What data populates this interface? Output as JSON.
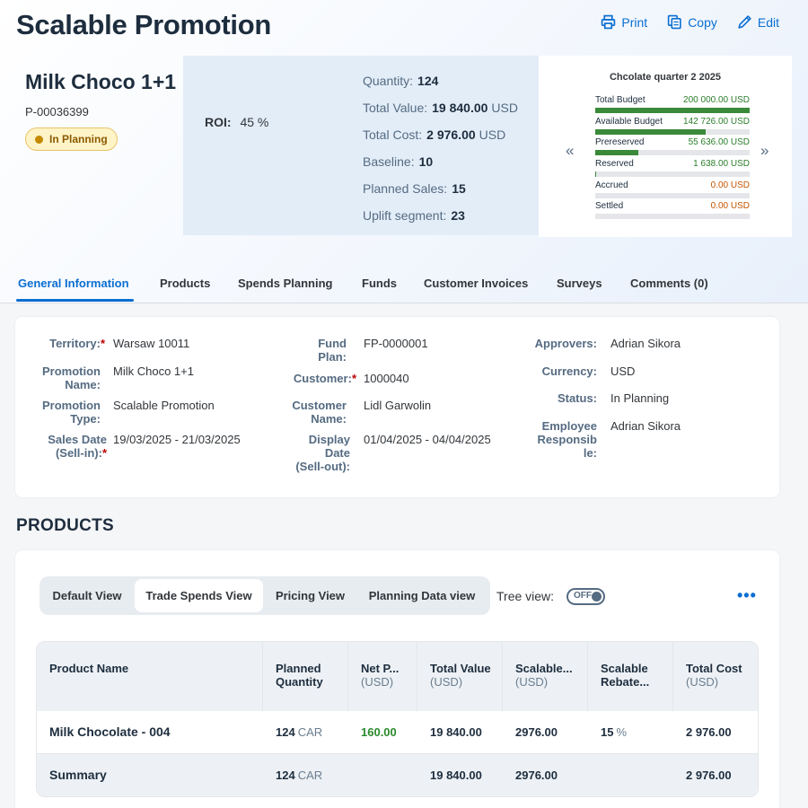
{
  "header": {
    "title": "Scalable Promotion",
    "actions": {
      "print": "Print",
      "copy": "Copy",
      "edit": "Edit"
    }
  },
  "object": {
    "name": "Milk Choco 1+1",
    "id": "P-00036399",
    "status": "In Planning",
    "roi_label": "ROI:",
    "roi_value": "45 %"
  },
  "kpis": [
    {
      "label": "Quantity:",
      "value": "124",
      "unit": ""
    },
    {
      "label": "Total Value:",
      "value": "19 840.00",
      "unit": "USD"
    },
    {
      "label": "Total Cost:",
      "value": "2 976.00",
      "unit": "USD"
    },
    {
      "label": "Baseline:",
      "value": "10",
      "unit": ""
    },
    {
      "label": "Planned Sales:",
      "value": "15",
      "unit": ""
    },
    {
      "label": "Uplift segment:",
      "value": "23",
      "unit": ""
    }
  ],
  "budget": {
    "title": "Chcolate quarter 2 2025",
    "prev": "«",
    "next": "»",
    "rows": [
      {
        "label": "Total Budget",
        "value": "200 000.00 USD",
        "tone": "green",
        "fill": 1.0
      },
      {
        "label": "Available Budget",
        "value": "142 726.00 USD",
        "tone": "green",
        "fill": 0.714
      },
      {
        "label": "Prereserved",
        "value": "55 636.00 USD",
        "tone": "green",
        "fill": 0.278
      },
      {
        "label": "Reserved",
        "value": "1 638.00 USD",
        "tone": "green",
        "fill": 0.008
      },
      {
        "label": "Accrued",
        "value": "0.00 USD",
        "tone": "orange",
        "fill": 0
      },
      {
        "label": "Settled",
        "value": "0.00 USD",
        "tone": "orange",
        "fill": 0
      }
    ]
  },
  "tabs": [
    "General Information",
    "Products",
    "Spends Planning",
    "Funds",
    "Customer Invoices",
    "Surveys",
    "Comments (0)"
  ],
  "general": {
    "territory": {
      "label": "Territory:",
      "value": "Warsaw 10011"
    },
    "promotion_name": {
      "label1": "Promotion",
      "label2": "Name:",
      "value": "Milk Choco 1+1"
    },
    "promotion_type": {
      "label1": "Promotion",
      "label2": "Type:",
      "value": "Scalable Promotion"
    },
    "sales_date": {
      "label1": "Sales Date",
      "label2": "(Sell-in):",
      "value": "19/03/2025 - 21/03/2025"
    },
    "fund_plan": {
      "label1": "Fund",
      "label2": "Plan:",
      "value": "FP-0000001"
    },
    "customer": {
      "label": "Customer:",
      "value": "1000040"
    },
    "customer_name": {
      "label1": "Customer",
      "label2": "Name:",
      "value": "Lidl Garwolin"
    },
    "display_date": {
      "label1": "Display",
      "label2": "Date",
      "label3": "(Sell-out):",
      "value": "01/04/2025 - 04/04/2025"
    },
    "approvers": {
      "label": "Approvers:",
      "value": "Adrian Sikora"
    },
    "currency": {
      "label": "Currency:",
      "value": "USD"
    },
    "status": {
      "label": "Status:",
      "value": "In Planning"
    },
    "employee": {
      "label1": "Employee",
      "label2": "Responsib",
      "label3": "le:",
      "value": "Adrian Sikora"
    },
    "required_mark": "*"
  },
  "products": {
    "section_title": "PRODUCTS",
    "views": [
      "Default View",
      "Trade Spends View",
      "Pricing View",
      "Planning Data view"
    ],
    "active_view": "Trade Spends View",
    "tree_view_label": "Tree view:",
    "tree_toggle": "OFF",
    "more": "•••",
    "columns": [
      {
        "line1": "Product Name",
        "line2": ""
      },
      {
        "line1": "Planned",
        "line2": "Quantity"
      },
      {
        "line1": "Net P...",
        "line2": "(USD)"
      },
      {
        "line1": "Total Value",
        "line2": "(USD)"
      },
      {
        "line1": "Scalable...",
        "line2": "(USD)"
      },
      {
        "line1": "Scalable",
        "line2": "Rebate..."
      },
      {
        "line1": "Total Cost",
        "line2": "(USD)"
      }
    ],
    "rows": [
      {
        "name": "Milk Chocolate - 004",
        "qty": "124",
        "qty_unit": "CAR",
        "net_price": "160.00",
        "total_value": "19 840.00",
        "scalable": "2976.00",
        "rebate": "15",
        "rebate_unit": "%",
        "total_cost": "2 976.00"
      }
    ],
    "summary": {
      "name": "Summary",
      "qty": "124",
      "qty_unit": "CAR",
      "total_value": "19 840.00",
      "scalable": "2976.00",
      "total_cost": "2 976.00"
    }
  }
}
